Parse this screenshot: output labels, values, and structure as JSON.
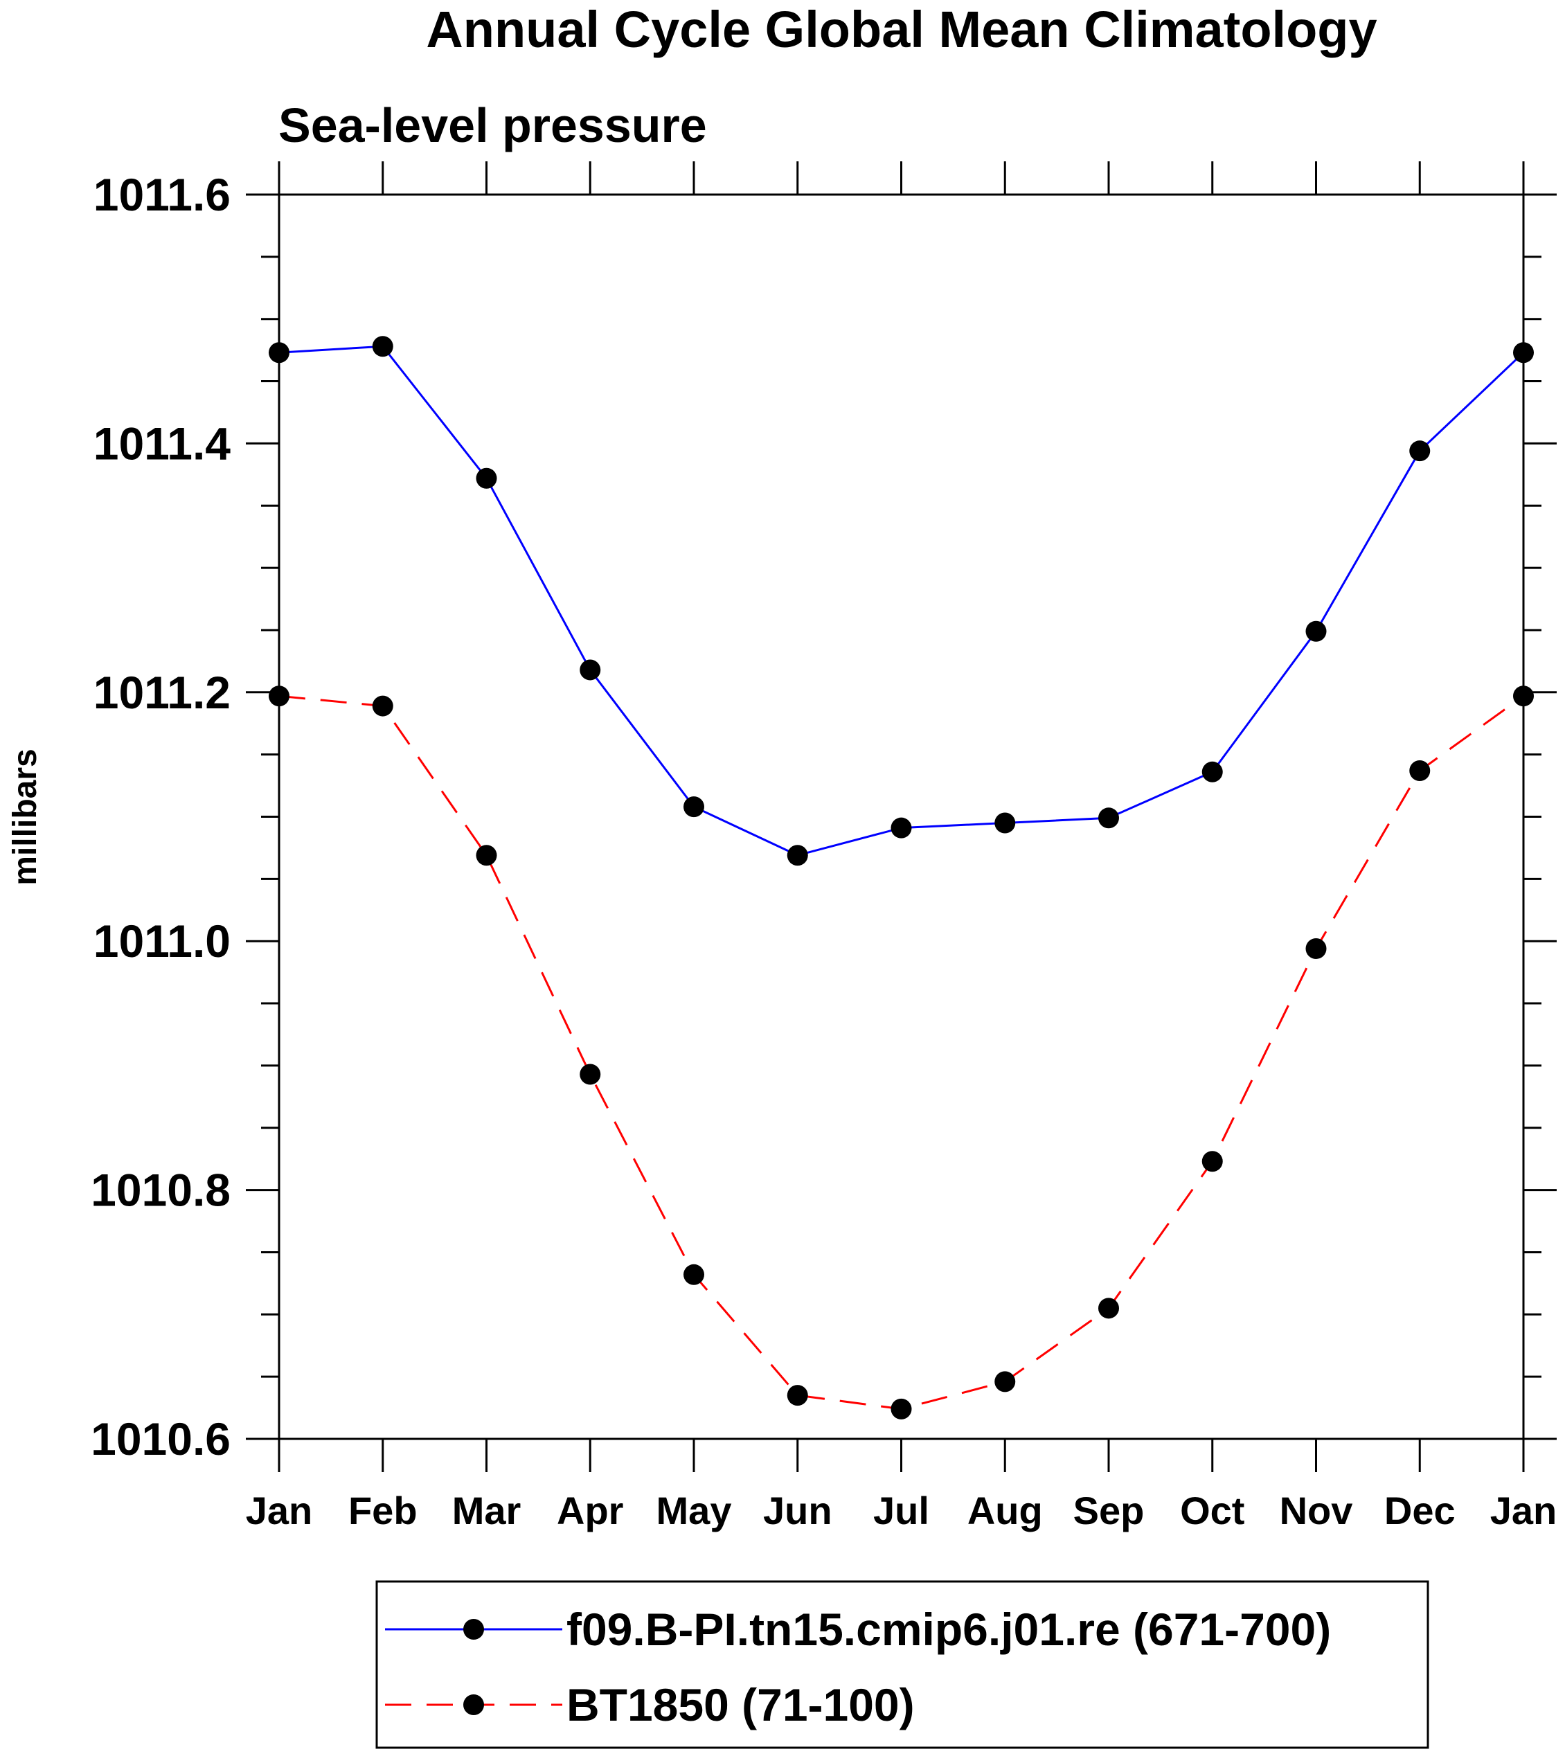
{
  "chart_data": {
    "type": "line",
    "title": "Annual Cycle Global Mean Climatology",
    "subtitle": "Sea-level pressure",
    "xlabel": "",
    "ylabel": "millibars",
    "categories": [
      "Jan",
      "Feb",
      "Mar",
      "Apr",
      "May",
      "Jun",
      "Jul",
      "Aug",
      "Sep",
      "Oct",
      "Nov",
      "Dec",
      "Jan"
    ],
    "ylim": [
      1010.6,
      1011.6
    ],
    "yticks": [
      1010.6,
      1010.8,
      1011.0,
      1011.2,
      1011.4,
      1011.6
    ],
    "ytick_labels": [
      "1010.6",
      "1010.8",
      "1011.0",
      "1011.2",
      "1011.4",
      "1011.6"
    ],
    "ygrid": false,
    "legend_position": "bottom",
    "series": [
      {
        "name": "f09.B-PI.tn15.cmip6.j01.re (671-700)",
        "color": "#0000ff",
        "line_style": "solid",
        "marker": "filled-circle",
        "values": [
          1011.473,
          1011.478,
          1011.372,
          1011.218,
          1011.108,
          1011.069,
          1011.091,
          1011.095,
          1011.099,
          1011.136,
          1011.249,
          1011.394,
          1011.473
        ]
      },
      {
        "name": "BT1850 (71-100)",
        "color": "#ff0000",
        "line_style": "dashed",
        "marker": "filled-circle",
        "values": [
          1011.197,
          1011.189,
          1011.069,
          1010.893,
          1010.732,
          1010.635,
          1010.624,
          1010.646,
          1010.705,
          1010.823,
          1010.994,
          1011.137,
          1011.197
        ]
      }
    ]
  }
}
